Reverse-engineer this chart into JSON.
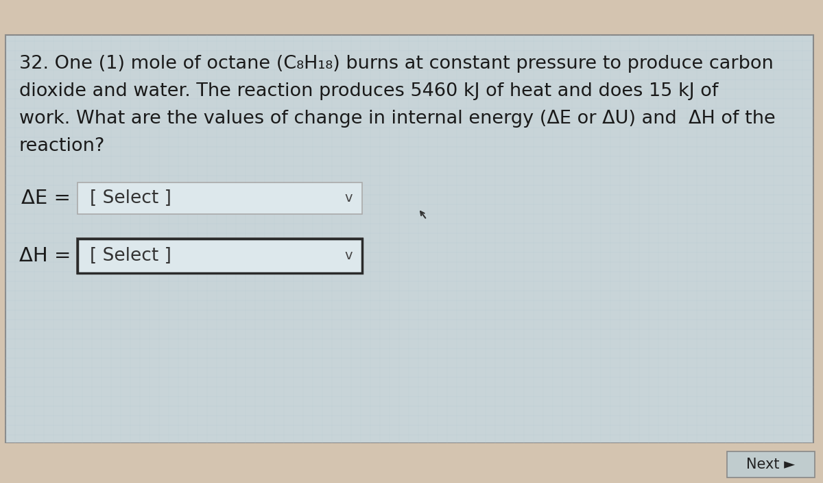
{
  "question_text_lines": [
    "32. One (1) mole of octane (C₈H₁₈) burns at constant pressure to produce carbon",
    "dioxide and water. The reaction produces 5460 kJ of heat and does 15 kJ of",
    "work. What are the values of change in internal energy (ΔE or ΔU) and  ΔH of the",
    "reaction?"
  ],
  "ae_label": "ΔE =",
  "ae_select": "[ Select ]",
  "ah_label": "ΔH =",
  "ah_select": "[ Select ]",
  "next_label": "Next ►",
  "bg_top_color": "#d4c4b0",
  "bg_main_color": "#c8d4d8",
  "bg_grid_color": "#b8cdd4",
  "box_fill_color": "#dde8ec",
  "box_border_ae": "#aaaaaa",
  "box_border_ah": "#2a2a2a",
  "text_color": "#1a1a1a",
  "font_size_main": 19.5,
  "font_size_label": 21,
  "font_size_select": 19,
  "font_size_next": 15,
  "outer_border_color": "#888888",
  "next_box_color": "#c0ccce"
}
